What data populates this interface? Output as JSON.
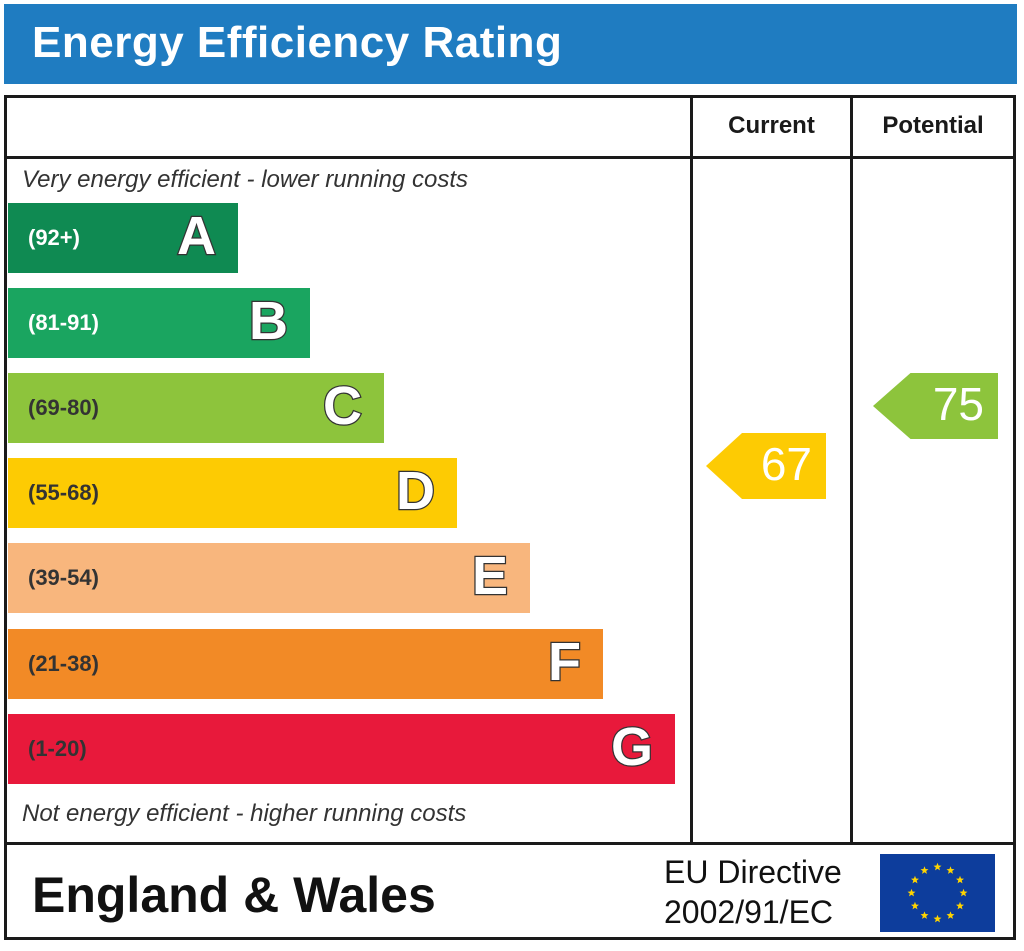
{
  "header": {
    "title": "Energy Efficiency Rating"
  },
  "columns": {
    "current_label": "Current",
    "potential_label": "Potential"
  },
  "captions": {
    "top": "Very energy efficient - lower running costs",
    "bottom": "Not energy efficient - higher running costs"
  },
  "bands": [
    {
      "range": "(92+)",
      "letter": "A",
      "color": "#0f8a52",
      "range_color": "#ffffff"
    },
    {
      "range": "(81-91)",
      "letter": "B",
      "color": "#1aa560",
      "range_color": "#ffffff"
    },
    {
      "range": "(69-80)",
      "letter": "C",
      "color": "#8dc43c",
      "range_color": "#333333"
    },
    {
      "range": "(55-68)",
      "letter": "D",
      "color": "#fdcb03",
      "range_color": "#333333"
    },
    {
      "range": "(39-54)",
      "letter": "E",
      "color": "#f8b67d",
      "range_color": "#333333"
    },
    {
      "range": "(21-38)",
      "letter": "F",
      "color": "#f28a26",
      "range_color": "#333333"
    },
    {
      "range": "(1-20)",
      "letter": "G",
      "color": "#e8193b",
      "range_color": "#333333"
    }
  ],
  "current": {
    "value": "67",
    "color": "#fdcb03"
  },
  "potential": {
    "value": "75",
    "color": "#8dc43c"
  },
  "footer": {
    "country": "England & Wales",
    "directive_line1": "EU Directive",
    "directive_line2": "2002/91/EC",
    "flag_color": "#0d3d9c",
    "star_color": "#ffd400"
  }
}
